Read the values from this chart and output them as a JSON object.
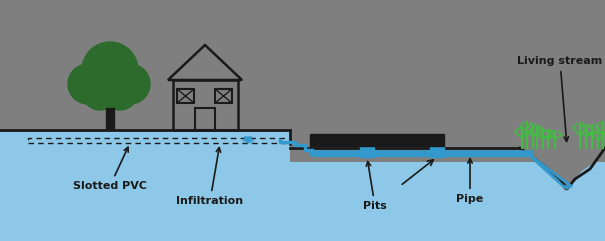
{
  "bg_color": "#7f7f7f",
  "water_color": "#8ec8e8",
  "blue_pipe_color": "#3399cc",
  "black_color": "#1a1a1a",
  "green_dark": "#2d6b2d",
  "green_bright": "#44bb44",
  "text_color": "#1a1a1a",
  "labels": {
    "slotted_pvc": "Slotted PVC",
    "infiltration": "Infiltration",
    "pits": "Pits",
    "pipe": "Pipe",
    "living_stream": "Living stream"
  },
  "figsize": [
    6.05,
    2.41
  ],
  "dpi": 100
}
